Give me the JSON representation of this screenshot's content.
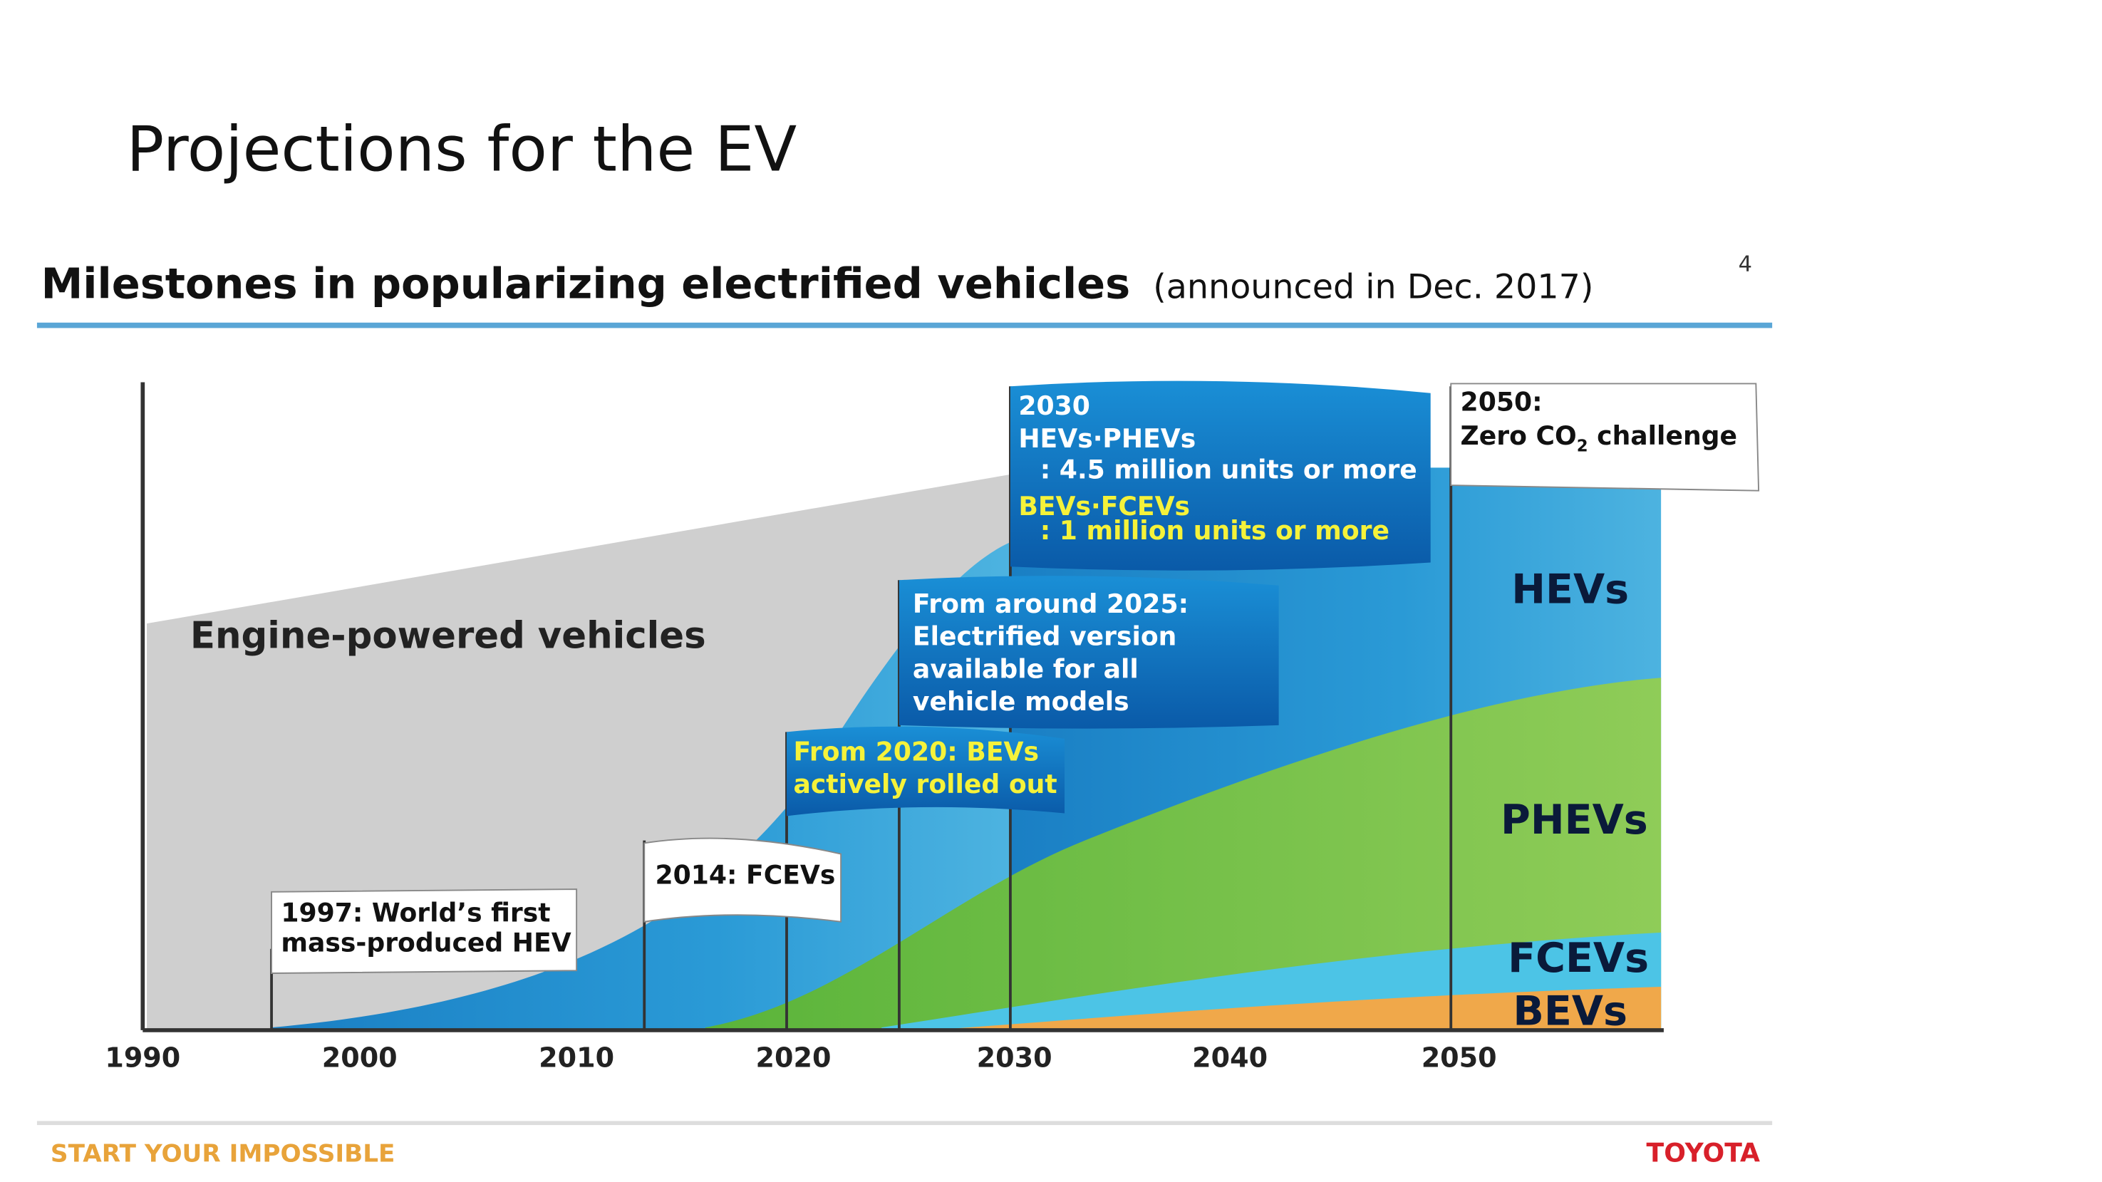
{
  "slide": {
    "title": "Projections for the EV",
    "page_number": "4"
  },
  "chart": {
    "title": "Milestones in popularizing electrified vehicles",
    "subtitle": "(announced in Dec. 2017)",
    "years": [
      "1990",
      "2000",
      "2010",
      "2020",
      "2030",
      "2040",
      "2050"
    ],
    "region_label": "Engine-powered vehicles",
    "flags": [
      {
        "lines": [
          "1997: World’s first",
          "mass-produced HEV"
        ]
      },
      {
        "lines": [
          "2014: FCEVs"
        ]
      },
      {
        "lines": [
          "From 2020: BEVs",
          "actively rolled out"
        ]
      },
      {
        "lines": [
          "From around 2025:",
          "Electrified version",
          "available for all",
          "vehicle models"
        ]
      },
      {
        "lines": [
          "2030",
          "HEVs·PHEVs",
          ": 4.5 million units or more",
          "BEVs·FCEVs",
          ": 1 million units or more"
        ]
      },
      {
        "lines": [
          "2050:",
          "Zero CO",
          "2",
          " challenge"
        ]
      }
    ],
    "segments": [
      "HEVs",
      "PHEVs",
      "FCEVs",
      "BEVs"
    ]
  },
  "footer": {
    "tagline": "START YOUR IMPOSSIBLE",
    "brand": "TOYOTA"
  }
}
